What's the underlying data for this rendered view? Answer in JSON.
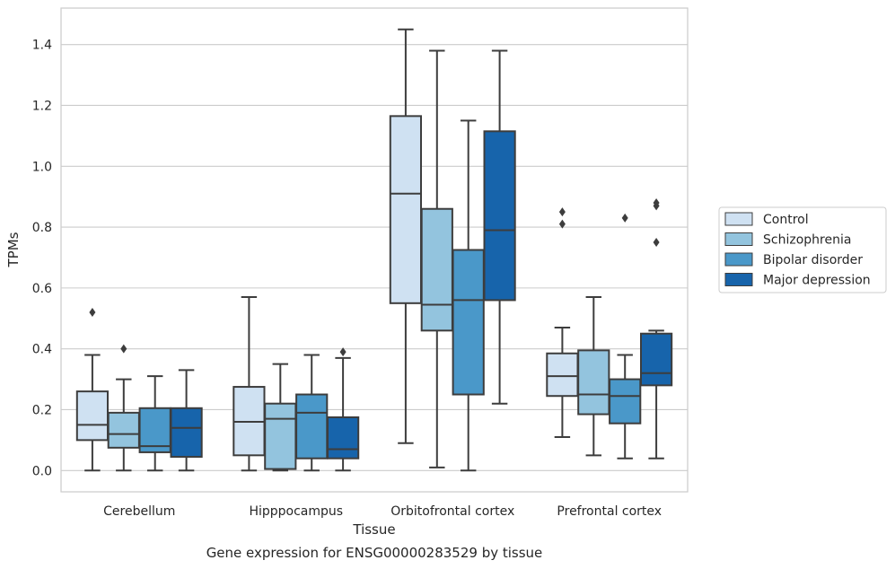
{
  "chart_data": {
    "type": "box",
    "title": "",
    "caption": "Gene expression for ENSG00000283529 by tissue",
    "xlabel": "Tissue",
    "ylabel": "TPMs",
    "ylim": [
      -0.07,
      1.52
    ],
    "yticks": [
      "0.0",
      "0.2",
      "0.4",
      "0.6",
      "0.8",
      "1.0",
      "1.2",
      "1.4"
    ],
    "grid": "horizontal",
    "legend_position": "right",
    "categories": [
      "Cerebellum",
      "Hipppocampus",
      "Orbitofrontal cortex",
      "Prefrontal cortex"
    ],
    "series": [
      {
        "name": "Control",
        "color": "#cfe1f2",
        "boxes": [
          {
            "whislo": 0.0,
            "q1": 0.1,
            "med": 0.15,
            "q3": 0.26,
            "whishi": 0.38,
            "fliers": [
              0.52
            ]
          },
          {
            "whislo": 0.0,
            "q1": 0.05,
            "med": 0.16,
            "q3": 0.275,
            "whishi": 0.57,
            "fliers": []
          },
          {
            "whislo": 0.09,
            "q1": 0.55,
            "med": 0.91,
            "q3": 1.165,
            "whishi": 1.45,
            "fliers": []
          },
          {
            "whislo": 0.11,
            "q1": 0.245,
            "med": 0.31,
            "q3": 0.385,
            "whishi": 0.47,
            "fliers": [
              0.81,
              0.85
            ]
          }
        ]
      },
      {
        "name": "Schizophrenia",
        "color": "#93c4de",
        "boxes": [
          {
            "whislo": 0.0,
            "q1": 0.075,
            "med": 0.12,
            "q3": 0.19,
            "whishi": 0.3,
            "fliers": [
              0.4
            ]
          },
          {
            "whislo": 0.0,
            "q1": 0.005,
            "med": 0.17,
            "q3": 0.22,
            "whishi": 0.35,
            "fliers": []
          },
          {
            "whislo": 0.01,
            "q1": 0.46,
            "med": 0.545,
            "q3": 0.86,
            "whishi": 1.38,
            "fliers": []
          },
          {
            "whislo": 0.05,
            "q1": 0.185,
            "med": 0.25,
            "q3": 0.395,
            "whishi": 0.57,
            "fliers": []
          }
        ]
      },
      {
        "name": "Bipolar disorder",
        "color": "#4a98c9",
        "boxes": [
          {
            "whislo": 0.0,
            "q1": 0.06,
            "med": 0.08,
            "q3": 0.205,
            "whishi": 0.31,
            "fliers": []
          },
          {
            "whislo": 0.0,
            "q1": 0.04,
            "med": 0.19,
            "q3": 0.25,
            "whishi": 0.38,
            "fliers": []
          },
          {
            "whislo": 0.0,
            "q1": 0.25,
            "med": 0.56,
            "q3": 0.725,
            "whishi": 1.15,
            "fliers": []
          },
          {
            "whislo": 0.04,
            "q1": 0.155,
            "med": 0.245,
            "q3": 0.3,
            "whishi": 0.38,
            "fliers": [
              0.83
            ]
          }
        ]
      },
      {
        "name": "Major depression",
        "color": "#1764ab",
        "boxes": [
          {
            "whislo": 0.0,
            "q1": 0.045,
            "med": 0.14,
            "q3": 0.205,
            "whishi": 0.33,
            "fliers": []
          },
          {
            "whislo": 0.0,
            "q1": 0.04,
            "med": 0.07,
            "q3": 0.175,
            "whishi": 0.37,
            "fliers": [
              0.39
            ]
          },
          {
            "whislo": 0.22,
            "q1": 0.56,
            "med": 0.79,
            "q3": 1.115,
            "whishi": 1.38,
            "fliers": []
          },
          {
            "whislo": 0.04,
            "q1": 0.28,
            "med": 0.32,
            "q3": 0.45,
            "whishi": 0.46,
            "fliers": [
              0.75,
              0.87,
              0.88
            ]
          }
        ]
      }
    ]
  }
}
